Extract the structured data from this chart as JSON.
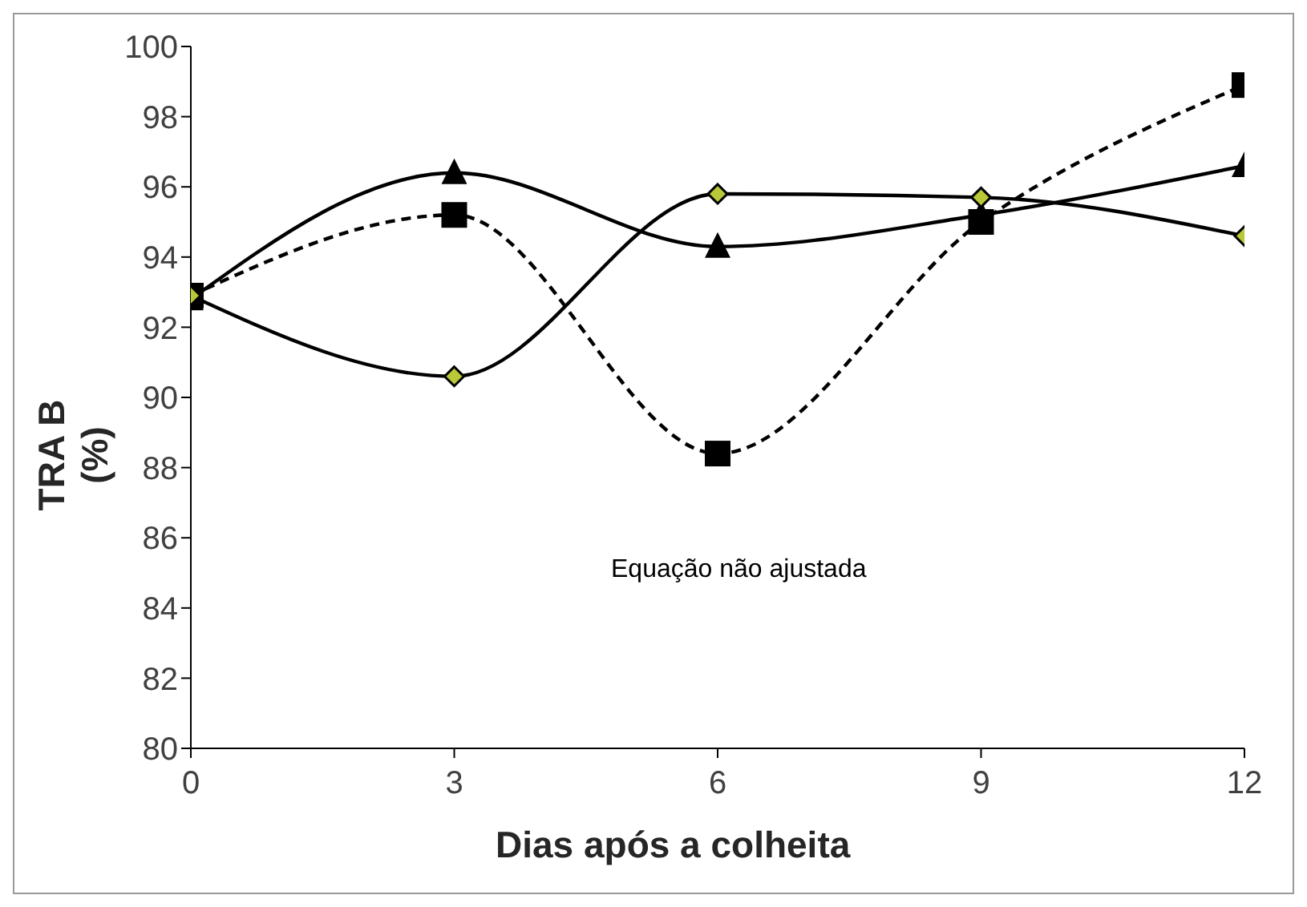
{
  "chart_data": {
    "type": "line",
    "xlabel": "Dias após a colheita",
    "ylabel": "TRA B\n(%)",
    "x": [
      0,
      3,
      6,
      9,
      12
    ],
    "series": [
      {
        "color": "#000000",
        "marker": "square",
        "line_style": "dashed",
        "values": [
          92.9,
          95.2,
          88.4,
          95.0,
          98.9
        ]
      },
      {
        "color": "#000000",
        "marker": "triangle",
        "line_style": "solid",
        "values": [
          92.8,
          96.4,
          94.3,
          95.2,
          96.6
        ]
      },
      {
        "color": "#000000",
        "marker": "diamond",
        "line_style": "solid",
        "values": [
          92.9,
          90.6,
          95.8,
          95.7,
          94.6
        ]
      }
    ],
    "xlim": [
      0,
      12
    ],
    "xticks": [
      0,
      3,
      6,
      9,
      12
    ],
    "ylim": [
      80,
      100
    ],
    "yticks": [
      80,
      82,
      84,
      86,
      88,
      90,
      92,
      94,
      96,
      98,
      100
    ],
    "annotations": [
      "Equação não ajustada"
    ],
    "grid": false,
    "legend": false
  }
}
